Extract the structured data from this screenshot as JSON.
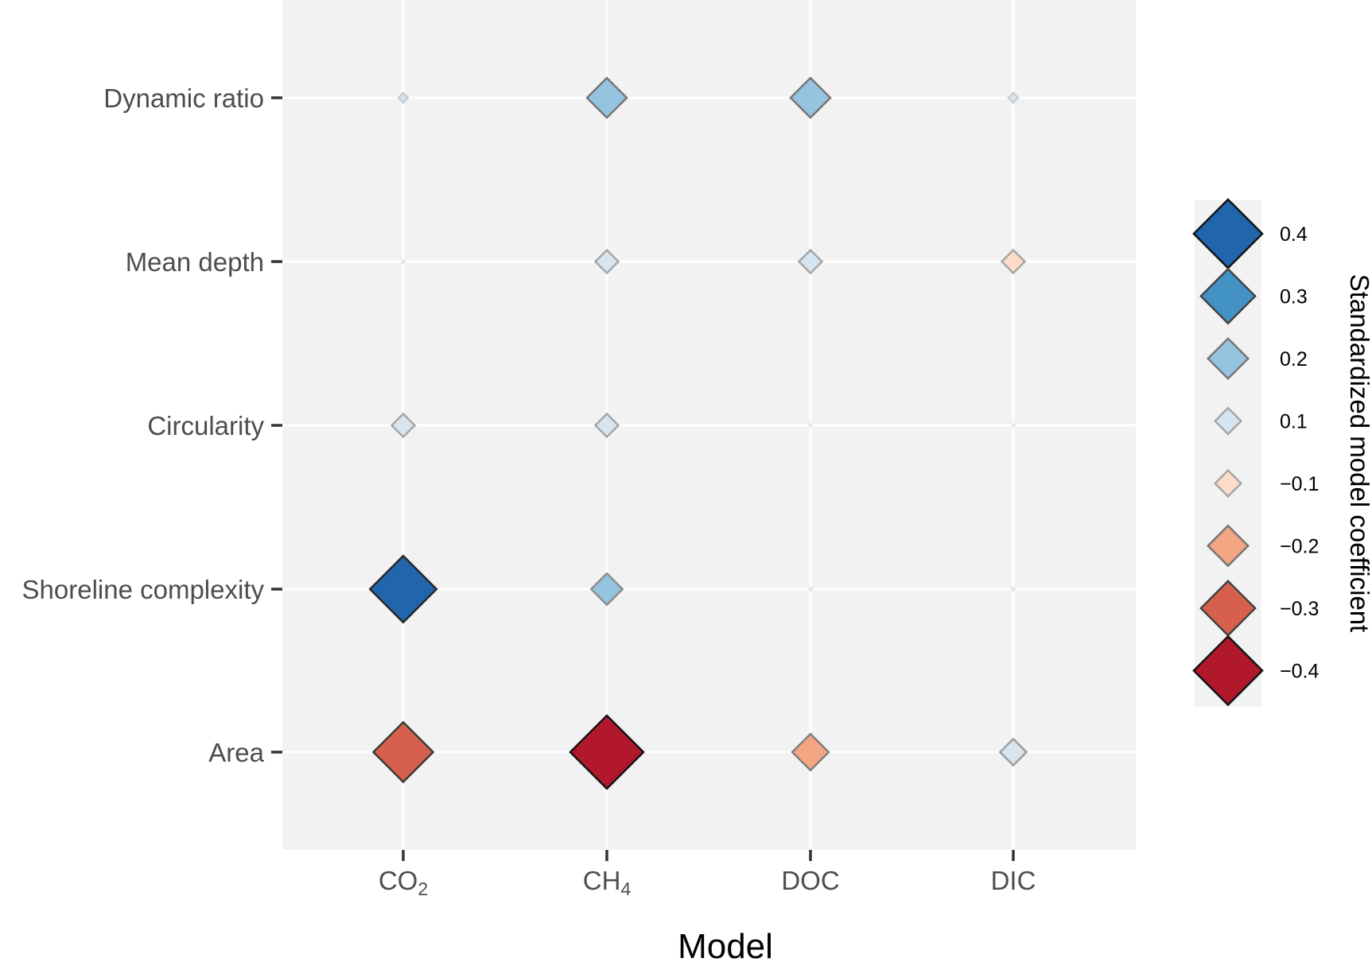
{
  "chart_data": {
    "type": "scatter",
    "xlabel": "Model",
    "categories_x": [
      {
        "label": "CO",
        "sub": "2"
      },
      {
        "label": "CH",
        "sub": "4"
      },
      {
        "label": "DOC",
        "sub": ""
      },
      {
        "label": "DIC",
        "sub": ""
      }
    ],
    "categories_y": [
      "Dynamic ratio",
      "Mean depth",
      "Circularity",
      "Shoreline complexity",
      "Area"
    ],
    "points": [
      {
        "x": 0,
        "y": 0,
        "value": 0.02
      },
      {
        "x": 1,
        "y": 0,
        "value": 0.2
      },
      {
        "x": 2,
        "y": 0,
        "value": 0.2
      },
      {
        "x": 3,
        "y": 0,
        "value": 0.02
      },
      {
        "x": 0,
        "y": 1,
        "value": 0
      },
      {
        "x": 1,
        "y": 1,
        "value": 0.1
      },
      {
        "x": 2,
        "y": 1,
        "value": 0.1
      },
      {
        "x": 3,
        "y": 1,
        "value": -0.1
      },
      {
        "x": 0,
        "y": 2,
        "value": 0.1
      },
      {
        "x": 1,
        "y": 2,
        "value": 0.1
      },
      {
        "x": 2,
        "y": 2,
        "value": 0
      },
      {
        "x": 3,
        "y": 2,
        "value": 0
      },
      {
        "x": 0,
        "y": 3,
        "value": 0.36
      },
      {
        "x": 1,
        "y": 3,
        "value": 0.15
      },
      {
        "x": 2,
        "y": 3,
        "value": 0
      },
      {
        "x": 3,
        "y": 3,
        "value": 0
      },
      {
        "x": 0,
        "y": 4,
        "value": -0.32
      },
      {
        "x": 1,
        "y": 4,
        "value": -0.4
      },
      {
        "x": 2,
        "y": 4,
        "value": -0.18
      },
      {
        "x": 3,
        "y": 4,
        "value": 0.12
      }
    ],
    "legend": {
      "title": "Standardized model coefficient",
      "position": "right",
      "entries": [
        {
          "label": "0.4",
          "value": 0.4
        },
        {
          "label": "0.3",
          "value": 0.3
        },
        {
          "label": "0.2",
          "value": 0.2
        },
        {
          "label": "0.1",
          "value": 0.1
        },
        {
          "label": "−0.1",
          "value": -0.1
        },
        {
          "label": "−0.2",
          "value": -0.2
        },
        {
          "label": "−0.3",
          "value": -0.3
        },
        {
          "label": "−0.4",
          "value": -0.4
        }
      ]
    },
    "colors": {
      "panel": "#f2f2f2",
      "grid": "#ffffff",
      "positive": [
        "#d6e5f0",
        "#94c4df",
        "#4292c6",
        "#2166ac"
      ],
      "negative": [
        "#fcdcc9",
        "#f4a582",
        "#d6604d",
        "#b2182b"
      ]
    },
    "grid": true
  }
}
